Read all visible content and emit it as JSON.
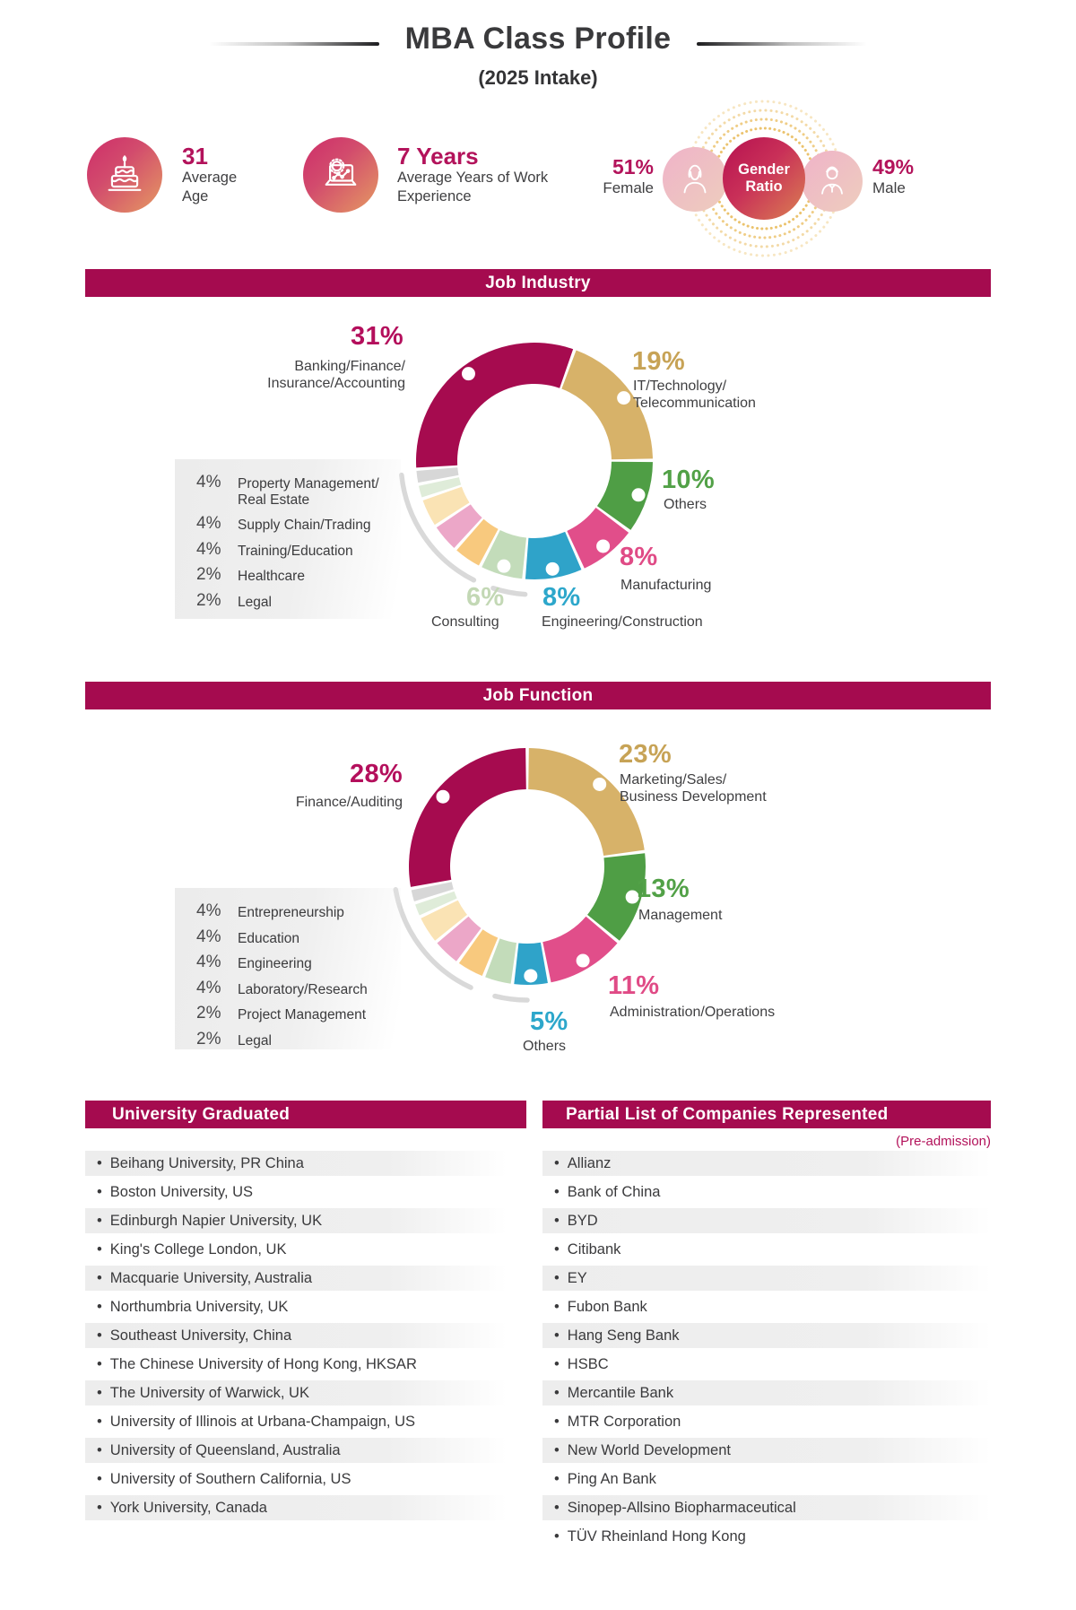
{
  "header": {
    "title": "MBA Class Profile",
    "subtitle": "(2025 Intake)"
  },
  "stats": {
    "age": {
      "value": "31",
      "label": "Average Age",
      "icon": "birthday-cake-icon"
    },
    "experience": {
      "value": "7 Years",
      "label": "Average Years of Work Experience",
      "icon": "laptop-gear-icon"
    },
    "gender": {
      "title": "Gender Ratio",
      "female_pct": "51%",
      "female_label": "Female",
      "male_pct": "49%",
      "male_label": "Male",
      "accent_dotted_ring_color": "#e9bc5e"
    }
  },
  "theme": {
    "primary": "#a50b4f",
    "accent_text": "#b3135b",
    "dark_text": "#3b3b3d"
  },
  "chart_data": [
    {
      "type": "pie",
      "variant": "donut",
      "title": "Job Industry",
      "unit": "%",
      "start_angle": 266,
      "legend_position": "around",
      "segments": [
        {
          "label": "Banking/Finance/Insurance/Accounting",
          "label_lines": [
            "Banking/Finance/",
            "Insurance/Accounting"
          ],
          "value": 31,
          "color": "#a60b4f",
          "text_color": "#b40f5c"
        },
        {
          "label": "IT/Technology/Telecommunication",
          "label_lines": [
            "IT/Technology/",
            "Telecommunication"
          ],
          "value": 19,
          "color": "#d7b269",
          "text_color": "#c7a356"
        },
        {
          "label": "Others",
          "label_lines": [
            "Others"
          ],
          "value": 10,
          "color": "#4f9e45",
          "text_color": "#52a147"
        },
        {
          "label": "Manufacturing",
          "label_lines": [
            "Manufacturing"
          ],
          "value": 8,
          "color": "#e14e8a",
          "text_color": "#e04b86"
        },
        {
          "label": "Engineering/Construction",
          "label_lines": [
            "Engineering/Construction"
          ],
          "value": 8,
          "color": "#2fa3c9",
          "text_color": "#2da7cb"
        },
        {
          "label": "Consulting",
          "label_lines": [
            "Consulting"
          ],
          "value": 6,
          "color": "#c3dcba",
          "text_color": "#c3d8b5"
        },
        {
          "label": "Property Management/Real Estate",
          "label_lines": [
            "Property Management/",
            "Real Estate"
          ],
          "value": 4,
          "color": "#f8c97e"
        },
        {
          "label": "Supply Chain/Trading",
          "label_lines": [
            "Supply Chain/Trading"
          ],
          "value": 4,
          "color": "#eca7c8"
        },
        {
          "label": "Training/Education",
          "label_lines": [
            "Training/Education"
          ],
          "value": 4,
          "color": "#fae3b4"
        },
        {
          "label": "Healthcare",
          "label_lines": [
            "Healthcare"
          ],
          "value": 2,
          "color": "#dfecd9"
        },
        {
          "label": "Legal",
          "label_lines": [
            "Legal"
          ],
          "value": 2,
          "color": "#d7d7d7"
        }
      ]
    },
    {
      "type": "pie",
      "variant": "donut",
      "title": "Job Function",
      "unit": "%",
      "start_angle": 0,
      "legend_position": "around",
      "segments": [
        {
          "label": "Marketing/Sales/Business Development",
          "label_lines": [
            "Marketing/Sales/",
            "Business Development"
          ],
          "value": 23,
          "color": "#d7b269",
          "text_color": "#c7a356"
        },
        {
          "label": "Management",
          "label_lines": [
            "Management"
          ],
          "value": 13,
          "color": "#4f9e45",
          "text_color": "#52a147"
        },
        {
          "label": "Administration/Operations",
          "label_lines": [
            "Administration/Operations"
          ],
          "value": 11,
          "color": "#e14e8a",
          "text_color": "#e04b86"
        },
        {
          "label": "Others",
          "label_lines": [
            "Others"
          ],
          "value": 5,
          "color": "#2fa3c9",
          "text_color": "#2da7cb"
        },
        {
          "label": "Entrepreneurship",
          "label_lines": [
            "Entrepreneurship"
          ],
          "value": 4,
          "color": "#c3dcba"
        },
        {
          "label": "Education",
          "label_lines": [
            "Education"
          ],
          "value": 4,
          "color": "#f8c97e"
        },
        {
          "label": "Engineering",
          "label_lines": [
            "Engineering"
          ],
          "value": 4,
          "color": "#eca7c8"
        },
        {
          "label": "Laboratory/Research",
          "label_lines": [
            "Laboratory/Research"
          ],
          "value": 4,
          "color": "#fae3b4"
        },
        {
          "label": "Project Management",
          "label_lines": [
            "Project Management"
          ],
          "value": 2,
          "color": "#dfecd9"
        },
        {
          "label": "Legal",
          "label_lines": [
            "Legal"
          ],
          "value": 2,
          "color": "#d7d7d7"
        },
        {
          "label": "Finance/Auditing",
          "label_lines": [
            "Finance/Auditing"
          ],
          "value": 28,
          "color": "#a60b4f",
          "text_color": "#b40f5c"
        }
      ]
    }
  ],
  "university": {
    "header": "University Graduated",
    "items": [
      "Beihang University, PR China",
      "Boston University, US",
      "Edinburgh Napier University, UK",
      "King's College London, UK",
      "Macquarie University, Australia",
      "Northumbria University, UK",
      "Southeast University, China",
      "The Chinese University of Hong Kong, HKSAR",
      "The University of Warwick, UK",
      "University of Illinois at Urbana-Champaign, US",
      "University of Queensland, Australia",
      "University of Southern California, US",
      "York University, Canada"
    ]
  },
  "companies": {
    "header": "Partial List of Companies Represented",
    "note": "(Pre-admission)",
    "items": [
      "Allianz",
      "Bank of China",
      "BYD",
      "Citibank",
      "EY",
      "Fubon Bank",
      "Hang Seng Bank",
      "HSBC",
      "Mercantile Bank",
      "MTR Corporation",
      "New World Development",
      "Ping An Bank",
      "Sinopep-Allsino Biopharmaceutical",
      "TÜV Rheinland Hong Kong"
    ]
  }
}
